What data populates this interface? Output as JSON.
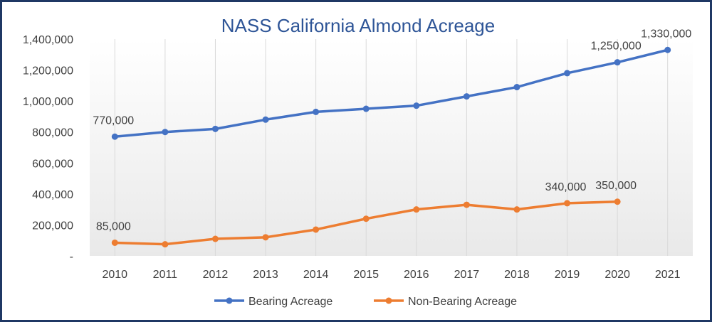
{
  "chart_data": {
    "type": "line",
    "title": "NASS California Almond Acreage",
    "categories": [
      "2010",
      "2011",
      "2012",
      "2013",
      "2014",
      "2015",
      "2016",
      "2017",
      "2018",
      "2019",
      "2020",
      "2021"
    ],
    "ylim": [
      0,
      1400000
    ],
    "y_ticks": [
      0,
      200000,
      400000,
      600000,
      800000,
      1000000,
      1200000,
      1400000
    ],
    "y_tick_labels": [
      "-",
      "200,000",
      "400,000",
      "600,000",
      "800,000",
      "1,000,000",
      "1,200,000",
      "1,400,000"
    ],
    "grid": "vertical",
    "legend_position": "bottom",
    "series": [
      {
        "name": "Bearing Acreage",
        "color": "#4472c4",
        "values": [
          770000,
          800000,
          820000,
          880000,
          930000,
          950000,
          970000,
          1030000,
          1090000,
          1180000,
          1250000,
          1330000
        ],
        "data_labels": [
          {
            "index": 0,
            "text": "770,000"
          },
          {
            "index": 10,
            "text": "1,250,000"
          },
          {
            "index": 11,
            "text": "1,330,000"
          }
        ]
      },
      {
        "name": "Non-Bearing Acreage",
        "color": "#ed7d31",
        "values": [
          85000,
          75000,
          110000,
          120000,
          170000,
          240000,
          300000,
          330000,
          300000,
          340000,
          350000,
          null
        ],
        "data_labels": [
          {
            "index": 0,
            "text": "85,000"
          },
          {
            "index": 9,
            "text": "340,000"
          },
          {
            "index": 10,
            "text": "350,000"
          }
        ]
      }
    ]
  }
}
